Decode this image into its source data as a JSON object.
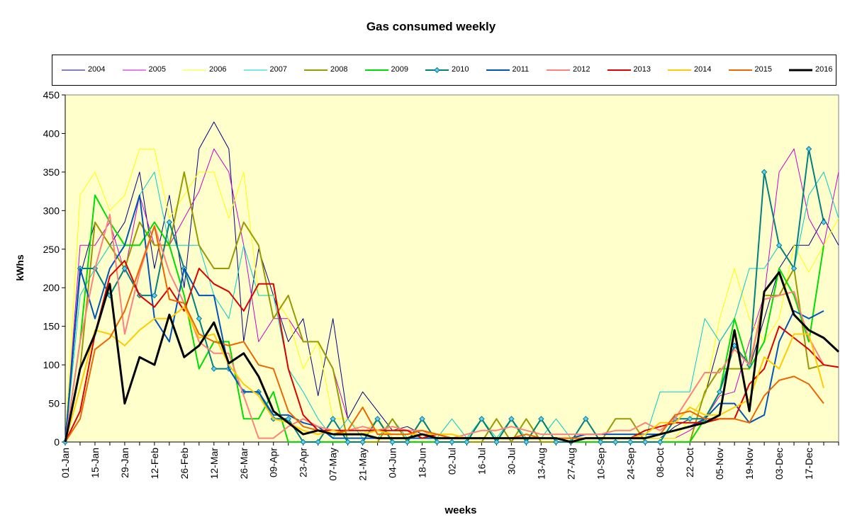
{
  "chart_data": {
    "type": "line",
    "title": "Gas consumed weekly",
    "xlabel": "weeks",
    "ylabel": "kWhs",
    "ylim": [
      0,
      450
    ],
    "yticks": [
      0,
      50,
      100,
      150,
      200,
      250,
      300,
      350,
      400,
      450
    ],
    "xtick_labels": [
      "01-Jan",
      "15-Jan",
      "29-Jan",
      "12-Feb",
      "26-Feb",
      "12-Mar",
      "26-Mar",
      "09-Apr",
      "23-Apr",
      "07-May",
      "21-May",
      "04-Jun",
      "18-Jun",
      "02-Jul",
      "16-Jul",
      "30-Jul",
      "13-Aug",
      "27-Aug",
      "10-Sep",
      "24-Sep",
      "08-Oct",
      "22-Oct",
      "05-Nov",
      "19-Nov",
      "03-Dec",
      "17-Dec"
    ],
    "week_count": 53,
    "plot_background": "#ffffcc",
    "grid": false,
    "legend_position": "top",
    "series": [
      {
        "name": "2004",
        "color": "#000080",
        "width": 1,
        "values": [
          0,
          215,
          285,
          255,
          285,
          350,
          225,
          320,
          200,
          380,
          415,
          380,
          130,
          250,
          190,
          130,
          160,
          60,
          160,
          30,
          65,
          40,
          15,
          20,
          10,
          5,
          5,
          5,
          5,
          5,
          5,
          5,
          5,
          5,
          5,
          5,
          5,
          5,
          5,
          5,
          5,
          20,
          30,
          60,
          130,
          160,
          95,
          160,
          225,
          255,
          255,
          290,
          255
        ]
      },
      {
        "name": "2005",
        "color": "#cc00cc",
        "width": 1,
        "values": [
          0,
          255,
          255,
          285,
          220,
          320,
          255,
          255,
          290,
          325,
          380,
          350,
          255,
          130,
          160,
          160,
          130,
          130,
          95,
          30,
          10,
          30,
          5,
          5,
          5,
          5,
          5,
          5,
          5,
          5,
          5,
          5,
          5,
          5,
          5,
          5,
          5,
          5,
          5,
          5,
          5,
          5,
          15,
          30,
          60,
          65,
          130,
          190,
          350,
          380,
          290,
          255,
          350
        ]
      },
      {
        "name": "2006",
        "color": "#ffff00",
        "width": 1,
        "values": [
          0,
          320,
          350,
          300,
          320,
          380,
          380,
          290,
          320,
          350,
          350,
          290,
          350,
          190,
          190,
          160,
          95,
          130,
          30,
          30,
          10,
          30,
          5,
          5,
          5,
          5,
          5,
          5,
          5,
          5,
          5,
          5,
          5,
          5,
          5,
          5,
          5,
          5,
          5,
          5,
          5,
          5,
          30,
          60,
          160,
          225,
          160,
          130,
          160,
          255,
          220,
          255,
          290
        ]
      },
      {
        "name": "2007",
        "color": "#00cccc",
        "width": 1,
        "values": [
          0,
          190,
          225,
          255,
          255,
          320,
          350,
          255,
          255,
          255,
          190,
          160,
          255,
          190,
          190,
          95,
          65,
          30,
          5,
          30,
          5,
          5,
          30,
          5,
          5,
          5,
          30,
          5,
          30,
          5,
          30,
          5,
          5,
          30,
          5,
          5,
          5,
          5,
          5,
          5,
          65,
          65,
          65,
          160,
          130,
          160,
          225,
          225,
          255,
          225,
          320,
          350,
          290
        ]
      },
      {
        "name": "2008",
        "color": "#999900",
        "width": 2,
        "values": [
          0,
          95,
          285,
          255,
          225,
          285,
          255,
          255,
          350,
          255,
          225,
          225,
          285,
          255,
          160,
          190,
          130,
          130,
          95,
          0,
          0,
          0,
          30,
          0,
          30,
          0,
          0,
          0,
          0,
          30,
          0,
          30,
          0,
          0,
          0,
          0,
          0,
          30,
          30,
          0,
          0,
          0,
          0,
          65,
          95,
          95,
          95,
          190,
          190,
          225,
          95,
          100
        ]
      },
      {
        "name": "2009",
        "color": "#00dd00",
        "width": 2,
        "values": [
          0,
          130,
          320,
          285,
          255,
          255,
          285,
          255,
          190,
          95,
          130,
          130,
          30,
          30,
          65,
          0,
          0,
          0,
          0,
          0,
          0,
          30,
          0,
          0,
          0,
          0,
          0,
          0,
          30,
          0,
          30,
          0,
          30,
          0,
          0,
          0,
          0,
          0,
          0,
          0,
          0,
          0,
          0,
          30,
          65,
          160,
          95,
          130,
          225,
          190,
          130,
          255
        ]
      },
      {
        "name": "2010",
        "color": "#008080",
        "width": 2,
        "markers": true,
        "values": [
          0,
          225,
          225,
          190,
          225,
          190,
          190,
          285,
          225,
          160,
          95,
          95,
          65,
          65,
          30,
          30,
          0,
          0,
          30,
          0,
          0,
          30,
          0,
          0,
          30,
          0,
          0,
          0,
          30,
          0,
          30,
          0,
          30,
          0,
          0,
          30,
          0,
          0,
          0,
          0,
          0,
          30,
          30,
          30,
          65,
          125,
          100,
          350,
          255,
          225,
          380,
          285
        ]
      },
      {
        "name": "2011",
        "color": "#0055bb",
        "width": 2,
        "values": [
          0,
          225,
          160,
          225,
          255,
          320,
          160,
          130,
          225,
          190,
          190,
          95,
          65,
          65,
          35,
          35,
          25,
          20,
          5,
          5,
          5,
          5,
          5,
          5,
          5,
          5,
          5,
          5,
          5,
          5,
          5,
          5,
          5,
          5,
          5,
          10,
          10,
          10,
          10,
          10,
          10,
          15,
          20,
          30,
          50,
          50,
          25,
          35,
          130,
          170,
          160,
          170
        ]
      },
      {
        "name": "2012",
        "color": "#ff8080",
        "width": 2,
        "values": [
          0,
          130,
          225,
          295,
          140,
          220,
          280,
          220,
          180,
          130,
          115,
          115,
          60,
          5,
          5,
          20,
          30,
          20,
          15,
          15,
          20,
          15,
          20,
          15,
          15,
          5,
          5,
          10,
          15,
          15,
          20,
          15,
          10,
          10,
          10,
          10,
          10,
          15,
          15,
          25,
          15,
          30,
          60,
          90,
          90,
          120,
          100,
          185,
          190,
          195,
          135,
          100
        ]
      },
      {
        "name": "2013",
        "color": "#dd0000",
        "width": 2,
        "values": [
          0,
          40,
          140,
          215,
          235,
          190,
          175,
          200,
          170,
          225,
          205,
          195,
          170,
          205,
          205,
          95,
          35,
          15,
          15,
          15,
          15,
          15,
          15,
          15,
          5,
          10,
          5,
          5,
          5,
          5,
          5,
          5,
          5,
          5,
          5,
          5,
          5,
          5,
          5,
          15,
          20,
          25,
          25,
          25,
          30,
          30,
          75,
          95,
          150,
          135,
          120,
          100,
          97
        ]
      },
      {
        "name": "2014",
        "color": "#ffcc00",
        "width": 2,
        "values": [
          0,
          70,
          145,
          140,
          125,
          145,
          160,
          160,
          175,
          135,
          140,
          100,
          75,
          60,
          30,
          25,
          15,
          10,
          15,
          10,
          10,
          15,
          10,
          10,
          10,
          10,
          10,
          5,
          5,
          5,
          5,
          5,
          5,
          5,
          5,
          5,
          5,
          5,
          5,
          10,
          25,
          25,
          45,
          35,
          35,
          45,
          55,
          110,
          95,
          140,
          140,
          70
        ]
      },
      {
        "name": "2015",
        "color": "#ee6600",
        "width": 2,
        "values": [
          0,
          30,
          120,
          135,
          170,
          225,
          280,
          185,
          180,
          140,
          130,
          125,
          130,
          100,
          95,
          40,
          20,
          15,
          10,
          15,
          45,
          10,
          10,
          10,
          15,
          10,
          5,
          5,
          5,
          5,
          5,
          10,
          5,
          5,
          5,
          5,
          5,
          5,
          5,
          5,
          10,
          35,
          40,
          30,
          30,
          30,
          25,
          60,
          80,
          85,
          75,
          50
        ]
      },
      {
        "name": "2016",
        "color": "#000000",
        "width": 3,
        "values": [
          0,
          95,
          140,
          205,
          50,
          110,
          100,
          165,
          110,
          125,
          155,
          102,
          115,
          85,
          40,
          25,
          10,
          15,
          10,
          10,
          10,
          5,
          5,
          5,
          10,
          5,
          5,
          5,
          5,
          5,
          5,
          5,
          5,
          5,
          0,
          5,
          5,
          5,
          5,
          5,
          10,
          15,
          20,
          25,
          35,
          145,
          40,
          195,
          220,
          165,
          145,
          135,
          117
        ]
      }
    ]
  }
}
